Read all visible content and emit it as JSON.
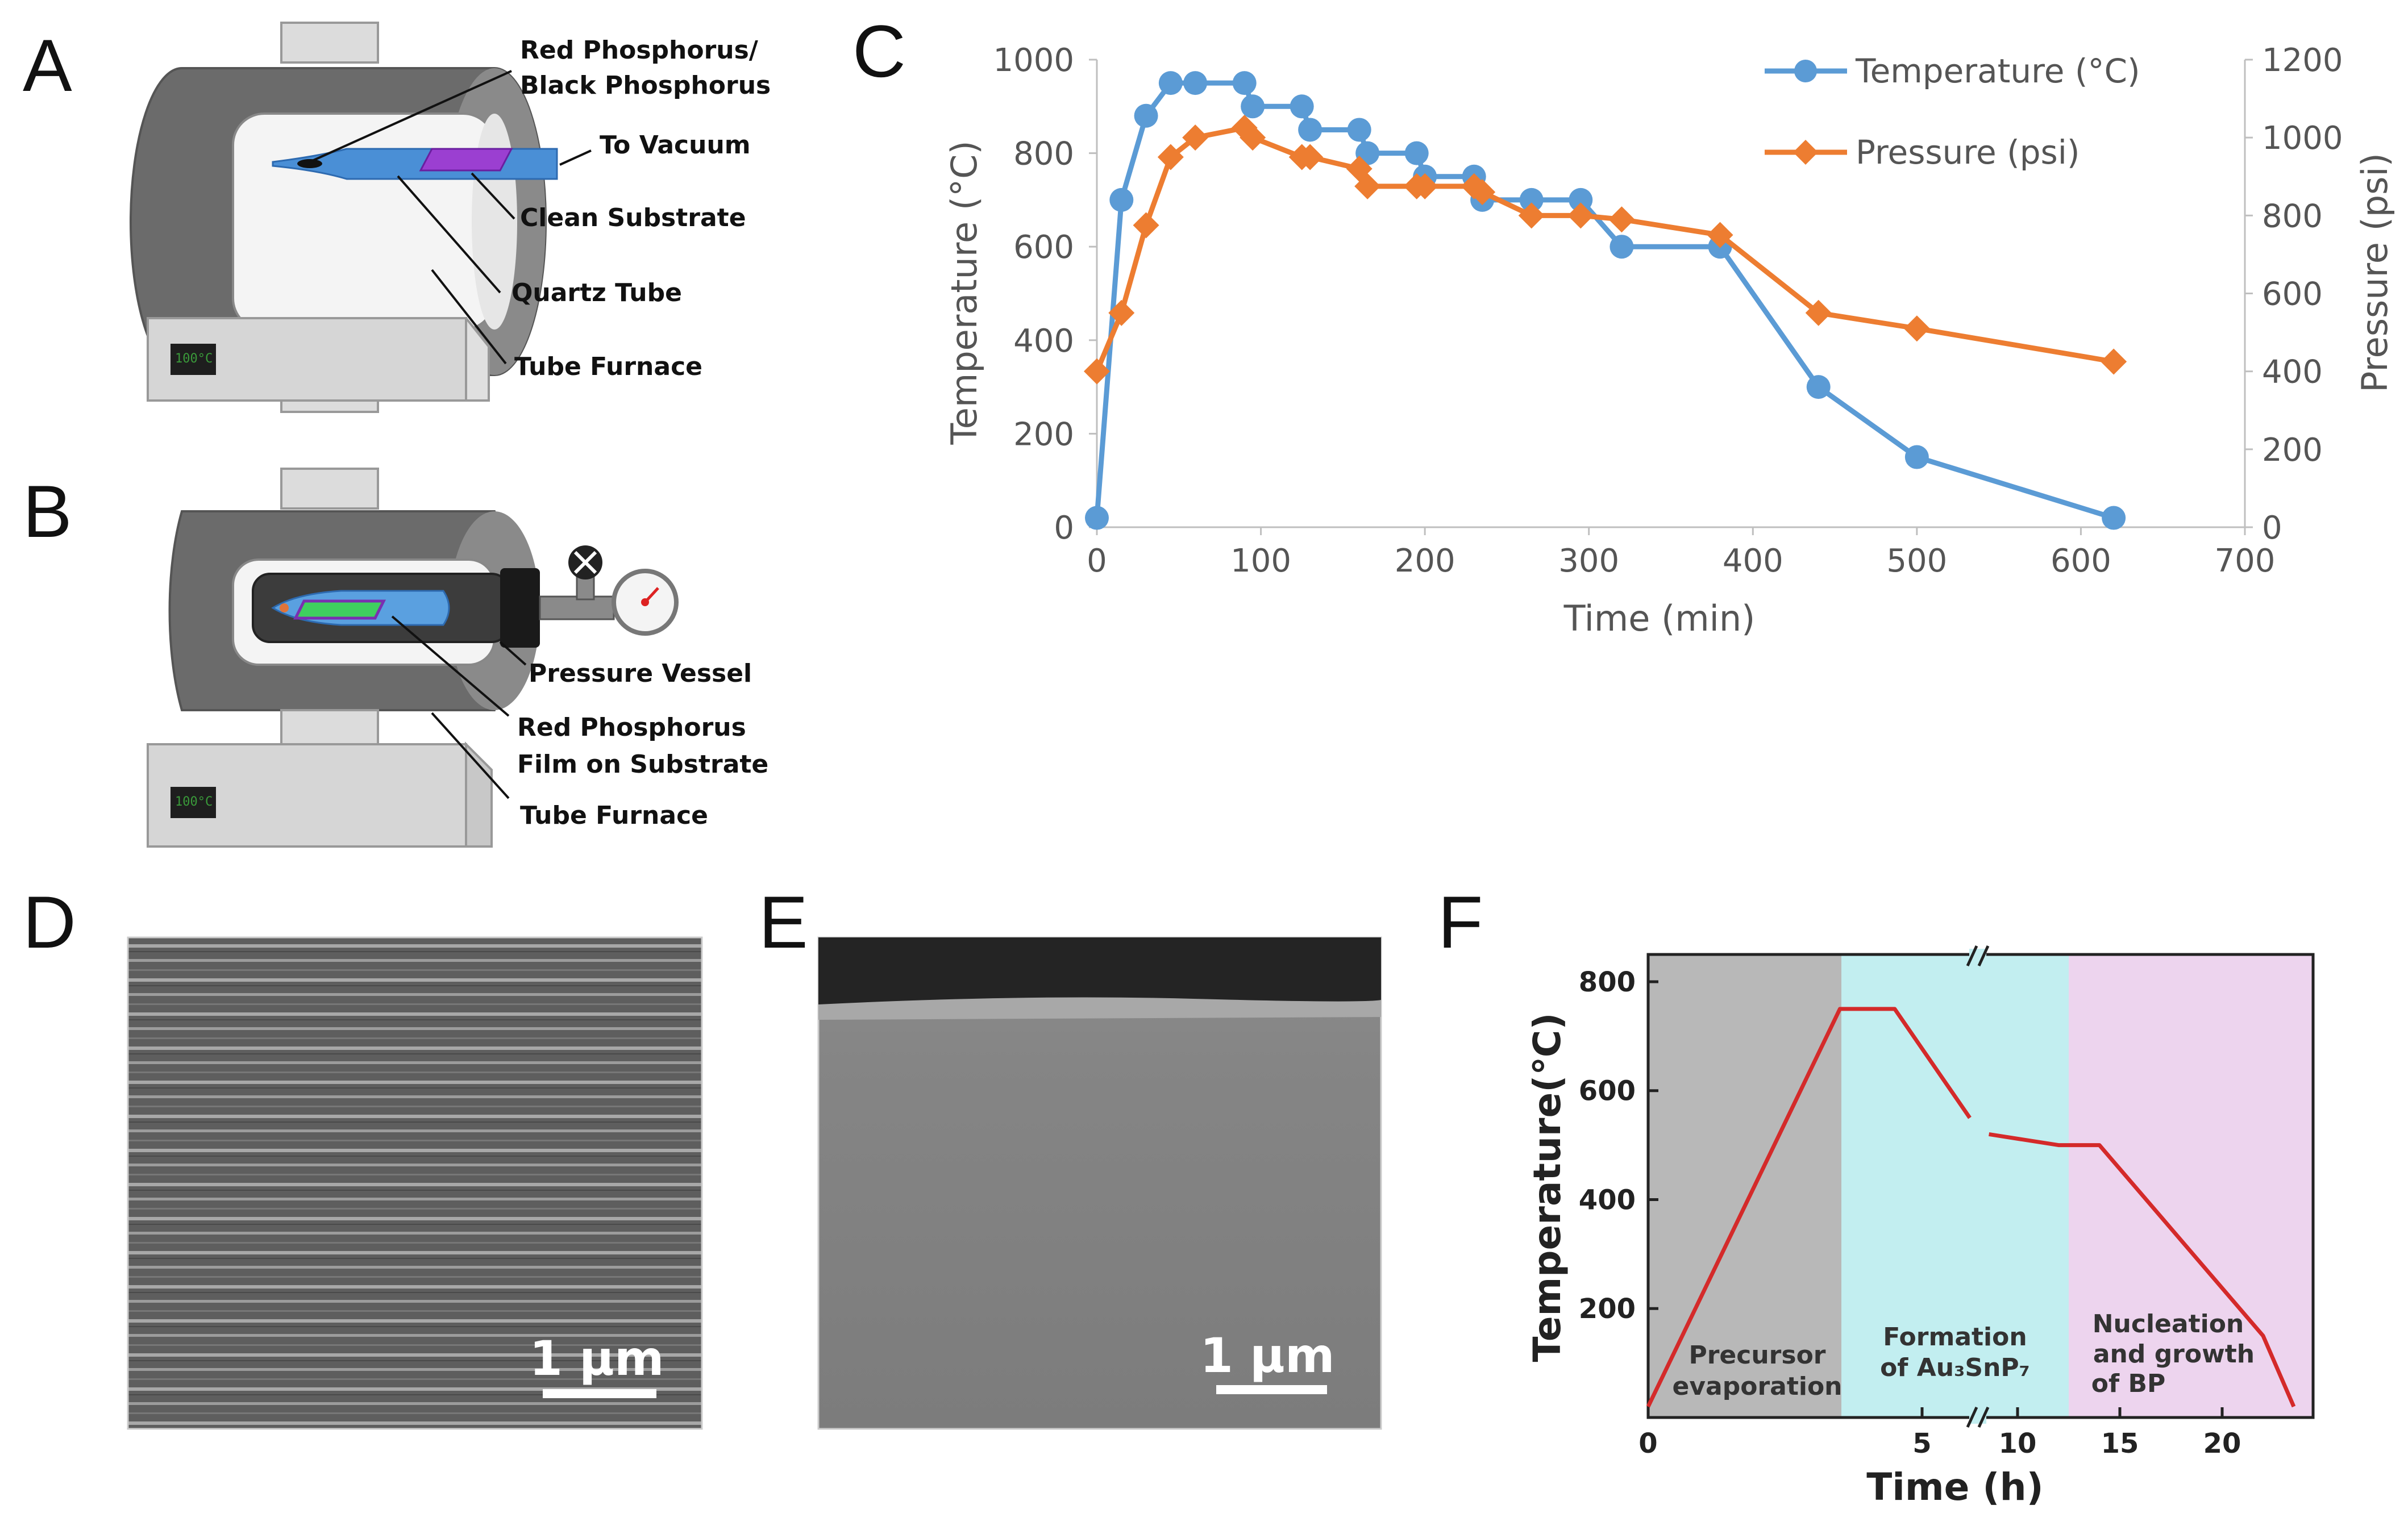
{
  "panels": {
    "A": {
      "label": "A",
      "display": "100°C",
      "annotations": [
        "Red Phosphorus/",
        "Black Phosphorus",
        "To Vacuum",
        "Clean Substrate",
        "Quartz Tube",
        "Tube Furnace"
      ]
    },
    "B": {
      "label": "B",
      "display": "100°C",
      "annotations": [
        "Pressure Vessel",
        "Red Phosphorus",
        "Film on Substrate",
        "Tube Furnace"
      ]
    },
    "C": {
      "label": "C"
    },
    "D": {
      "label": "D",
      "scale_bar": "1 μm"
    },
    "E": {
      "label": "E",
      "scale_bar": "1 μm"
    },
    "F": {
      "label": "F"
    }
  },
  "colors": {
    "temperature": "#5b9bd5",
    "pressure": "#ed7d31",
    "profile_line": "#d42a2a",
    "region_precursor": "#b8b8b8",
    "region_formation": "#c2eef0",
    "region_nucleation": "#edd4ee"
  },
  "chart_data": [
    {
      "panel": "C",
      "type": "line",
      "xlabel": "Time (min)",
      "ylabel": "Temperature (°C)",
      "y2label": "Pressure (psi)",
      "xlim": [
        0,
        700
      ],
      "ylim": [
        0,
        1000
      ],
      "y2lim": [
        0,
        1200
      ],
      "xticks": [
        0,
        100,
        200,
        300,
        400,
        500,
        600,
        700
      ],
      "yticks": [
        0,
        200,
        400,
        600,
        800,
        1000
      ],
      "y2ticks": [
        0,
        200,
        400,
        600,
        800,
        1000,
        1200
      ],
      "legend_position": "top-right",
      "grid": false,
      "series": [
        {
          "name": "Temperature (°C)",
          "axis": "left",
          "marker": "circle",
          "x": [
            0,
            15,
            30,
            45,
            60,
            90,
            95,
            125,
            130,
            160,
            165,
            195,
            200,
            230,
            235,
            265,
            295,
            320,
            380,
            440,
            500,
            620
          ],
          "y": [
            20,
            700,
            880,
            950,
            950,
            950,
            900,
            900,
            850,
            850,
            800,
            800,
            750,
            750,
            700,
            700,
            700,
            600,
            600,
            300,
            150,
            20
          ]
        },
        {
          "name": "Pressure (psi)",
          "axis": "right",
          "marker": "diamond",
          "x": [
            0,
            15,
            30,
            45,
            60,
            90,
            95,
            125,
            130,
            160,
            165,
            195,
            200,
            230,
            235,
            265,
            295,
            320,
            380,
            440,
            500,
            620
          ],
          "y": [
            400,
            550,
            775,
            950,
            1000,
            1025,
            1000,
            950,
            950,
            920,
            875,
            875,
            875,
            875,
            860,
            800,
            800,
            790,
            750,
            550,
            510,
            425
          ]
        }
      ]
    },
    {
      "panel": "F",
      "type": "line",
      "xlabel": "Time (h)",
      "ylabel": "Temperature(℃)",
      "ylim": [
        0,
        850
      ],
      "yticks": [
        200,
        400,
        600,
        800
      ],
      "xtick_labels": [
        "0",
        "5",
        "10",
        "15",
        "20"
      ],
      "regions": [
        {
          "label": [
            "Precursor",
            "evaporation"
          ]
        },
        {
          "label": [
            "Formation",
            "of Au₃SnP₇"
          ]
        },
        {
          "label": [
            "Nucleation",
            "and growth",
            "of BP"
          ]
        }
      ],
      "series": [
        {
          "x": [
            0,
            3.5,
            4.5,
            7.5,
            8.5,
            12,
            14,
            22,
            23.5
          ],
          "y": [
            20,
            750,
            750,
            550,
            520,
            500,
            500,
            150,
            20
          ]
        }
      ]
    }
  ]
}
